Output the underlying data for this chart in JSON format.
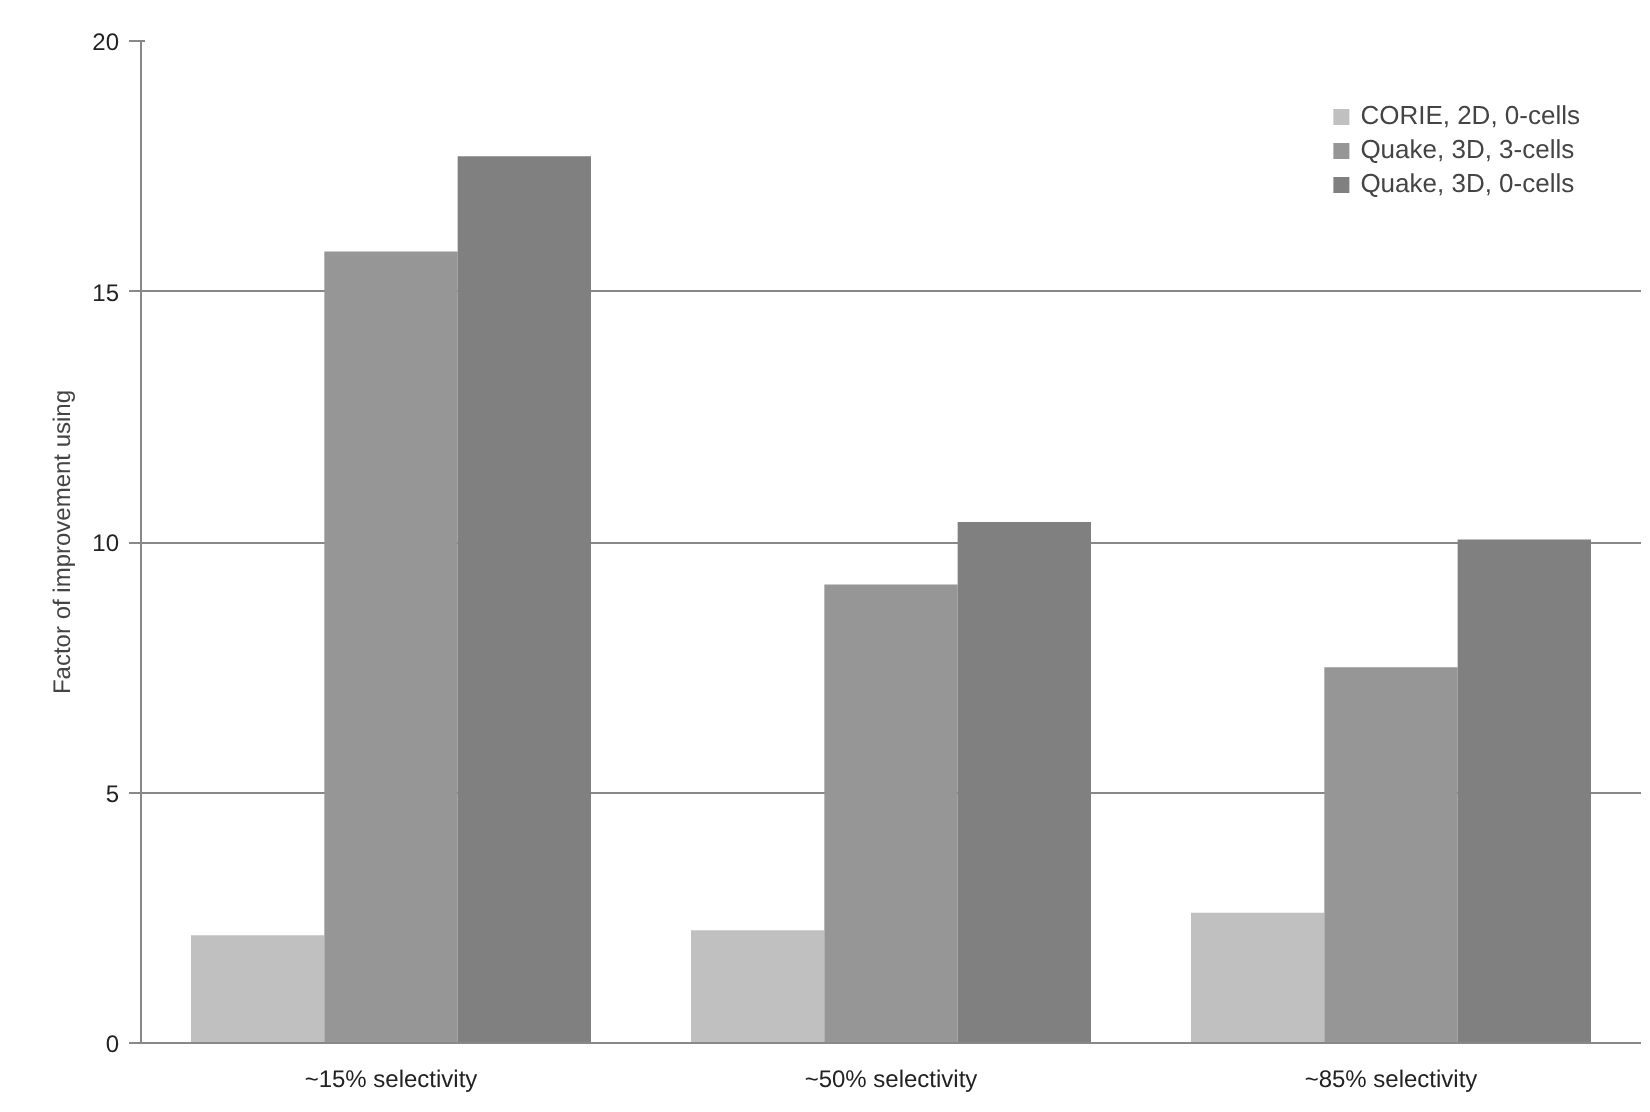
{
  "chart_data": {
    "type": "bar",
    "ylabel": "Factor of improvement using",
    "categories": [
      "~15% selectivity",
      "~50% selectivity",
      "~85% selectivity"
    ],
    "series": [
      {
        "name": "CORIE, 2D, 0-cells",
        "color": "#c0c0c0",
        "values": [
          2.15,
          2.25,
          2.6
        ]
      },
      {
        "name": "Quake, 3D, 3-cells",
        "color": "#969696",
        "values": [
          15.8,
          9.15,
          7.5
        ]
      },
      {
        "name": "Quake, 3D, 0-cells",
        "color": "#808080",
        "values": [
          17.7,
          10.4,
          10.05
        ]
      }
    ],
    "ylim": [
      0,
      20
    ],
    "yticks": [
      0,
      5,
      10,
      15,
      20
    ],
    "grid": "y",
    "legend": "top right"
  }
}
